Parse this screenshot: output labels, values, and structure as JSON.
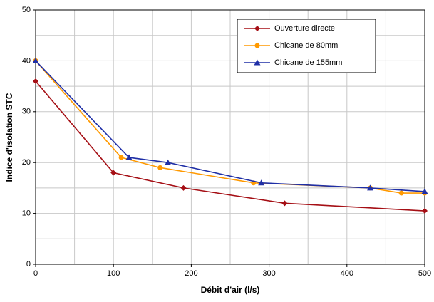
{
  "chart_data": {
    "type": "line",
    "x_label": "Débit d'air (l/s)",
    "y_label": "Indice d'isolation STC",
    "xlim": [
      0,
      500
    ],
    "xticks": [
      0,
      100,
      200,
      300,
      400,
      500
    ],
    "xminor": [
      50,
      150,
      250,
      350,
      450
    ],
    "ylim": [
      0,
      50
    ],
    "yticks": [
      0,
      10,
      20,
      30,
      40,
      50
    ],
    "yminor": [
      5,
      15,
      25,
      35,
      45
    ],
    "grid": true,
    "legend": "top-right",
    "series": [
      {
        "name": "Ouverture directe",
        "color": "#a50f15",
        "marker": "diamond",
        "x": [
          0,
          100,
          190,
          320,
          500
        ],
        "values": [
          36,
          18,
          15,
          12,
          10.5
        ]
      },
      {
        "name": "Chicane de 80mm",
        "color": "#ff9900",
        "marker": "circle",
        "x": [
          0,
          110,
          160,
          280,
          430,
          470,
          500
        ],
        "values": [
          40,
          21,
          19,
          16,
          15,
          14,
          14
        ]
      },
      {
        "name": "Chicane de 155mm",
        "color": "#1f2fa6",
        "marker": "triangle",
        "x": [
          0,
          120,
          170,
          290,
          430,
          500
        ],
        "values": [
          40,
          21,
          20,
          16,
          15,
          14.3
        ]
      }
    ]
  }
}
